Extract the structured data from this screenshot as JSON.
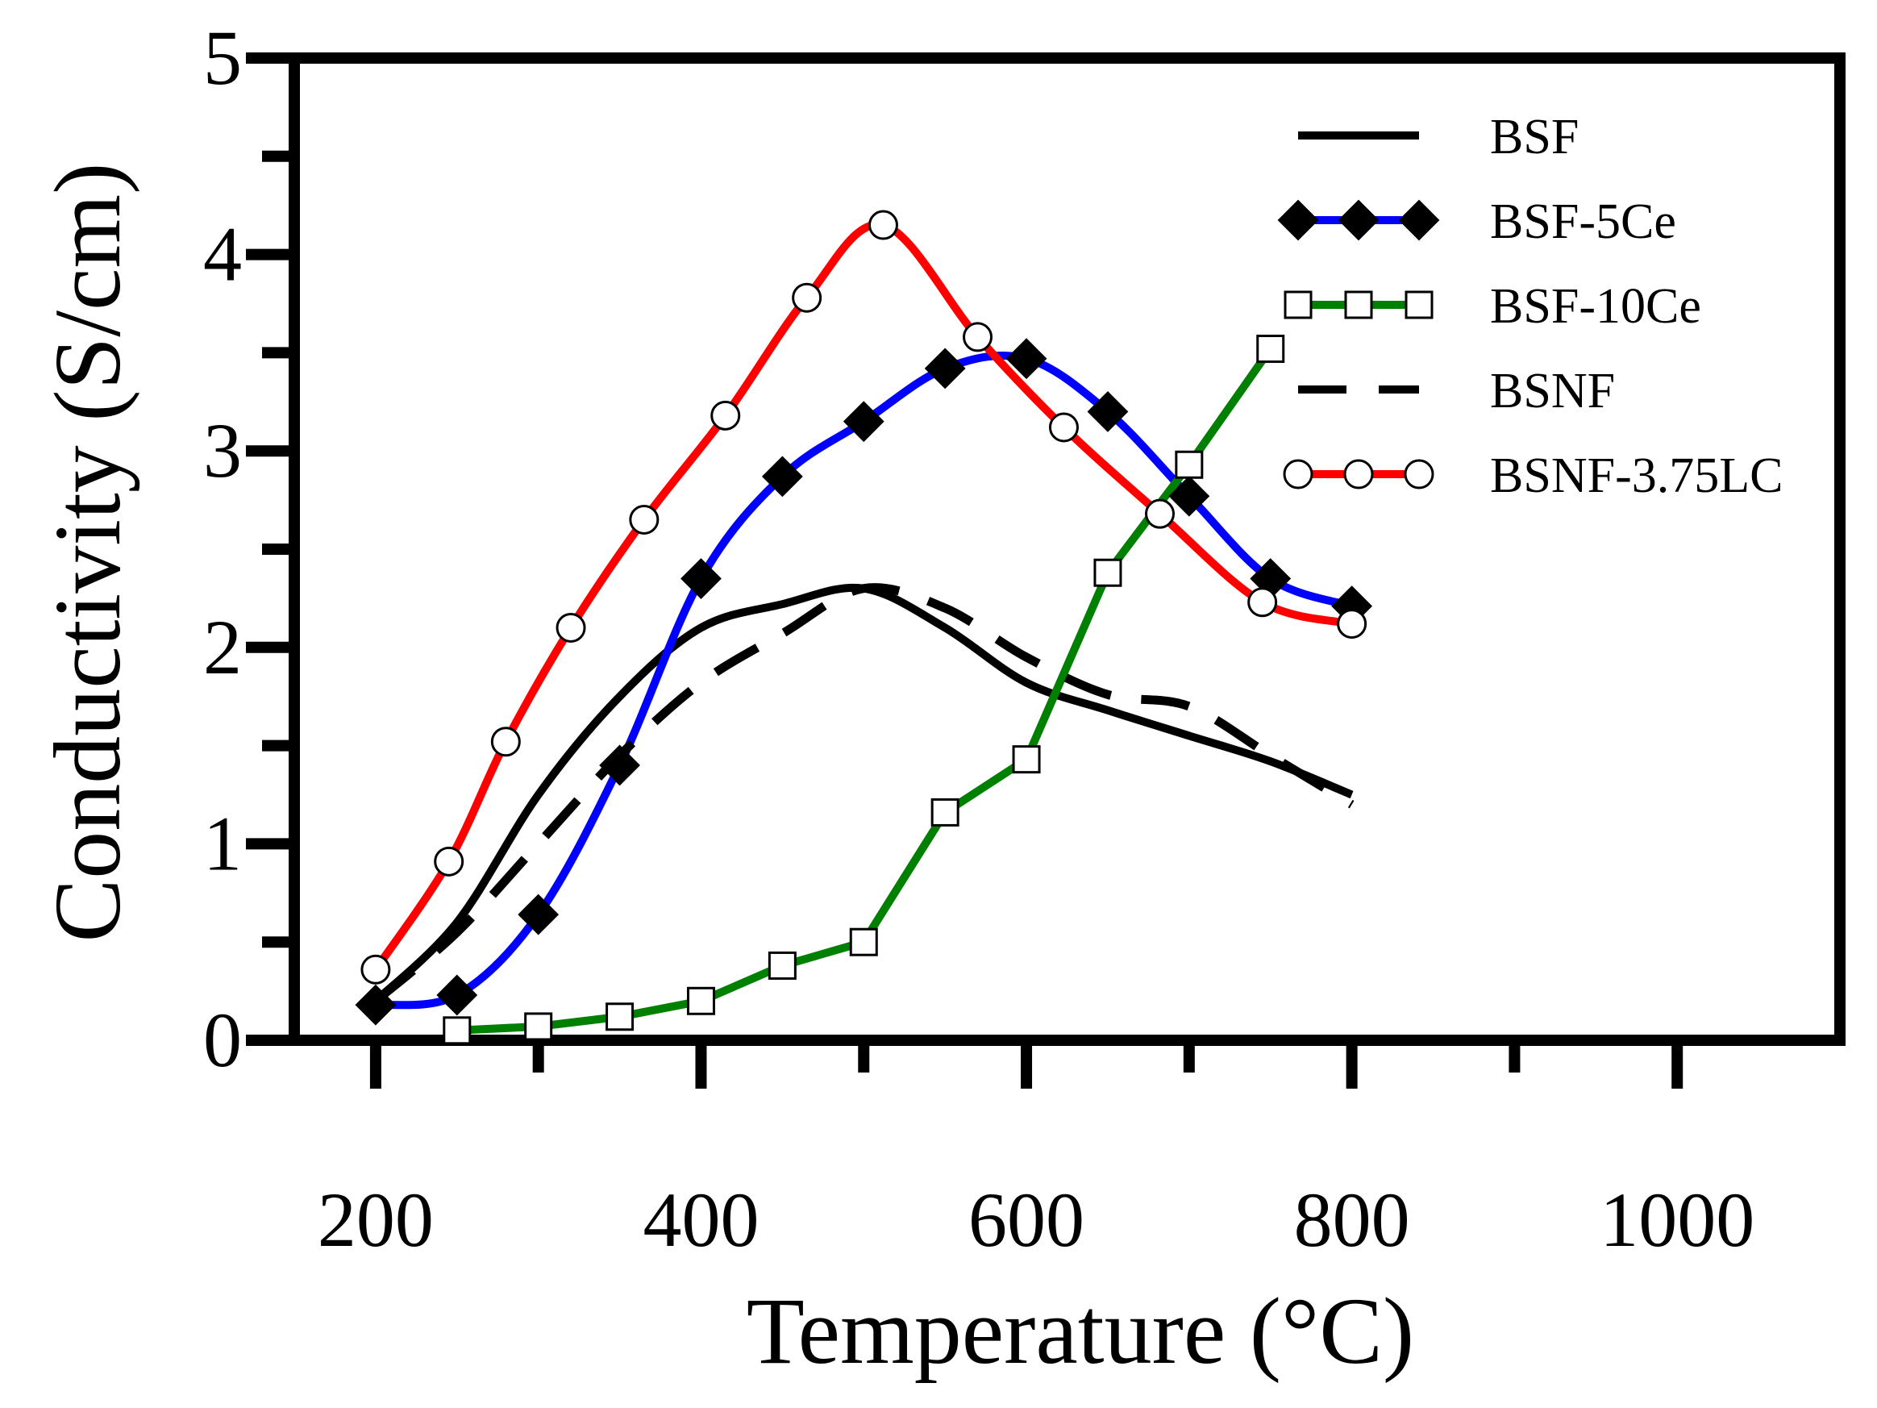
{
  "chart_data": {
    "type": "line",
    "title": "",
    "xlabel": "Temperature (°C)",
    "ylabel": "Conductivity (S/cm)",
    "xlim": [
      150,
      1100
    ],
    "ylim": [
      0,
      5
    ],
    "x_ticks": [
      200,
      400,
      600,
      800,
      1000
    ],
    "x_minor_ticks": [
      300,
      500,
      700,
      900
    ],
    "y_ticks": [
      0,
      1,
      2,
      3,
      4,
      5
    ],
    "y_minor_ticks": [
      0.5,
      1.5,
      2.5,
      3.5,
      4.5
    ],
    "legend_position": "top-right",
    "series": [
      {
        "name": "BSF",
        "color": "#000000",
        "dash": "solid",
        "marker": "none",
        "x": [
          200,
          250,
          300,
          350,
          400,
          450,
          500,
          550,
          600,
          650,
          700,
          750,
          800
        ],
        "y": [
          0.2,
          0.6,
          1.25,
          1.75,
          2.1,
          2.22,
          2.3,
          2.1,
          1.82,
          1.68,
          1.55,
          1.42,
          1.25
        ]
      },
      {
        "name": "BSF-5Ce",
        "color": "#0000ff",
        "dash": "solid",
        "marker": "filled-diamond",
        "x": [
          200,
          250,
          300,
          350,
          400,
          450,
          500,
          550,
          600,
          650,
          700,
          750,
          800
        ],
        "y": [
          0.18,
          0.23,
          0.64,
          1.4,
          2.35,
          2.87,
          3.15,
          3.42,
          3.47,
          3.2,
          2.77,
          2.35,
          2.21
        ]
      },
      {
        "name": "BSF-10Ce",
        "color": "#008000",
        "dash": "solid",
        "marker": "open-square",
        "x": [
          250,
          300,
          350,
          400,
          450,
          500,
          550,
          600,
          650,
          700,
          750
        ],
        "y": [
          0.05,
          0.07,
          0.12,
          0.2,
          0.38,
          0.5,
          1.16,
          1.43,
          2.38,
          2.93,
          3.52
        ]
      },
      {
        "name": "BSNF",
        "color": "#000000",
        "dash": "dashed",
        "marker": "none",
        "x": [
          200,
          250,
          300,
          350,
          400,
          450,
          500,
          550,
          600,
          650,
          700,
          750,
          800
        ],
        "y": [
          0.2,
          0.55,
          1.0,
          1.45,
          1.82,
          2.07,
          2.3,
          2.2,
          1.95,
          1.76,
          1.7,
          1.45,
          1.2
        ]
      },
      {
        "name": "BSNF-3.75LC",
        "color": "#ff0000",
        "dash": "solid",
        "marker": "open-circle",
        "x": [
          200,
          245,
          280,
          320,
          365,
          415,
          465,
          512,
          570,
          623,
          682,
          745,
          800
        ],
        "y": [
          0.36,
          0.91,
          1.52,
          2.1,
          2.65,
          3.18,
          3.78,
          4.15,
          3.58,
          3.12,
          2.68,
          2.23,
          2.12
        ]
      }
    ]
  }
}
